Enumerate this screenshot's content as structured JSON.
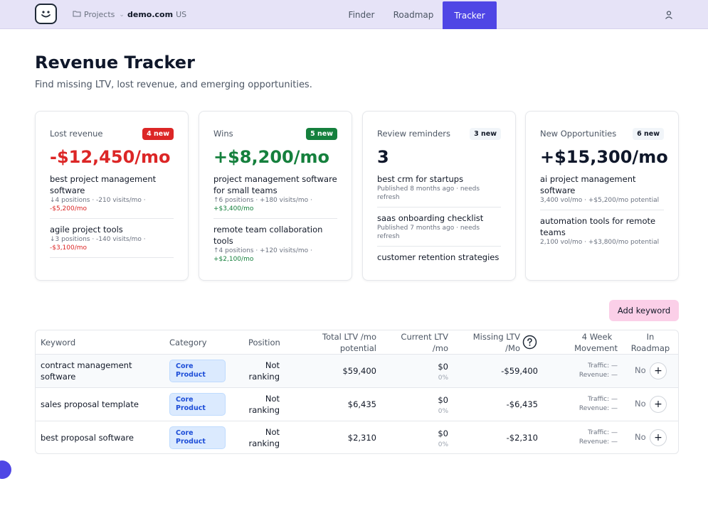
{
  "nav": {
    "projects_label": "Projects",
    "domain": "demo.com",
    "country": "US",
    "tabs": [
      "Finder",
      "Roadmap",
      "Tracker"
    ],
    "active_tab": "Tracker",
    "accent_color": "#4f46e5"
  },
  "page": {
    "title": "Revenue Tracker",
    "subtitle": "Find missing LTV, lost revenue, and emerging opportunities."
  },
  "cards": {
    "lost": {
      "label": "Lost revenue",
      "badge": "4 new",
      "value": "-$12,450/mo",
      "items": [
        {
          "title": "best project management software",
          "meta": "↓4 positions · -210 visits/mo ·",
          "delta": "-$5,200/mo"
        },
        {
          "title": "agile project tools",
          "meta": "↓3 positions · -140 visits/mo ·",
          "delta": "-$3,100/mo"
        }
      ]
    },
    "wins": {
      "label": "Wins",
      "badge": "5 new",
      "value": "+$8,200/mo",
      "items": [
        {
          "title": "project management software for small teams",
          "meta": "↑6 positions · +180 visits/mo ·",
          "delta": "+$3,400/mo"
        },
        {
          "title": "remote team collaboration tools",
          "meta": "↑4 positions · +120 visits/mo ·",
          "delta": "+$2,100/mo"
        }
      ]
    },
    "review": {
      "label": "Review reminders",
      "badge": "3 new",
      "value": "3",
      "items": [
        {
          "title": "best crm for startups",
          "meta": "Published 8 months ago · needs refresh"
        },
        {
          "title": "saas onboarding checklist",
          "meta": "Published 7 months ago · needs refresh"
        },
        {
          "title": "customer retention strategies",
          "meta": ""
        }
      ]
    },
    "opps": {
      "label": "New Opportunities",
      "badge": "6 new",
      "value": "+$15,300/mo",
      "items": [
        {
          "title": "ai project management software",
          "meta": "3,400 vol/mo · +$5,200/mo potential"
        },
        {
          "title": "automation tools for remote teams",
          "meta": "2,100 vol/mo · +$3,800/mo potential"
        }
      ]
    }
  },
  "actions": {
    "add_keyword": "Add keyword"
  },
  "table": {
    "headers": {
      "keyword": "Keyword",
      "category": "Category",
      "position": "Position",
      "total_ltv_1": "Total LTV /mo",
      "total_ltv_2": "potential",
      "current_ltv_1": "Current LTV",
      "current_ltv_2": "/mo",
      "missing_ltv_1": "Missing LTV",
      "missing_ltv_2": "/Mo",
      "movement_1": "4 Week",
      "movement_2": "Movement",
      "roadmap_1": "In",
      "roadmap_2": "Roadmap"
    },
    "rows": [
      {
        "keyword_1": "contract management",
        "keyword_2": "software",
        "category_1": "Core",
        "category_2": "Product",
        "position_1": "Not",
        "position_2": "ranking",
        "total": "$59,400",
        "current": "$0",
        "current_pct": "0%",
        "missing": "-$59,400",
        "traffic": "Traffic: —",
        "revenue": "Revenue: —",
        "roadmap": "No"
      },
      {
        "keyword_1": "sales proposal template",
        "keyword_2": "",
        "category_1": "Core",
        "category_2": "Product",
        "position_1": "Not",
        "position_2": "ranking",
        "total": "$6,435",
        "current": "$0",
        "current_pct": "0%",
        "missing": "-$6,435",
        "traffic": "Traffic: —",
        "revenue": "Revenue: —",
        "roadmap": "No"
      },
      {
        "keyword_1": "best proposal software",
        "keyword_2": "",
        "category_1": "Core",
        "category_2": "Product",
        "position_1": "Not",
        "position_2": "ranking",
        "total": "$2,310",
        "current": "$0",
        "current_pct": "0%",
        "missing": "-$2,310",
        "traffic": "Traffic: —",
        "revenue": "Revenue: —",
        "roadmap": "No"
      }
    ]
  },
  "icons": {
    "logo": "smiley-logo-icon",
    "folder": "folder-icon",
    "chevron": "chevron-down-icon",
    "user": "user-icon",
    "help": "help-circle-icon",
    "plus": "plus-icon"
  }
}
